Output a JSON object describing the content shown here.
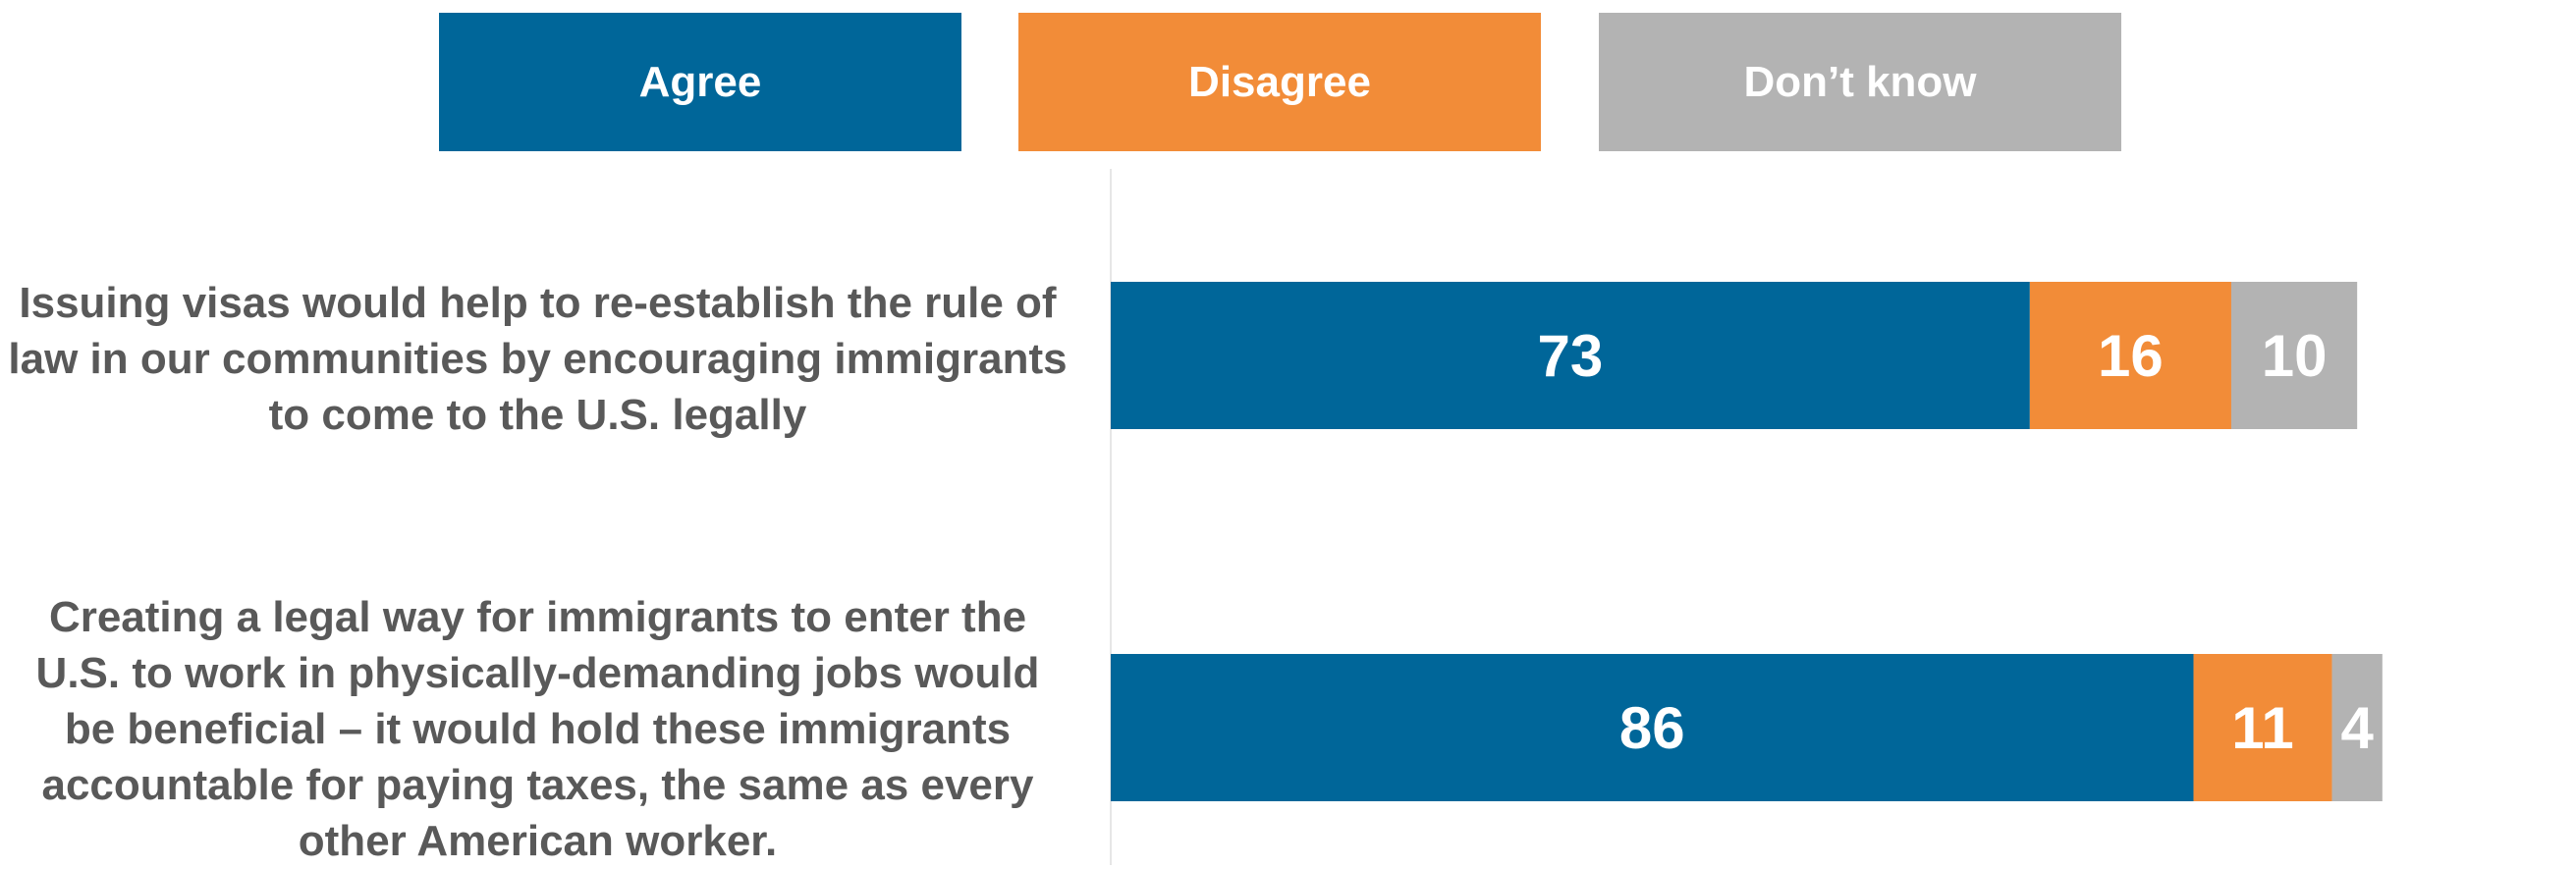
{
  "legend": {
    "agree": "Agree",
    "disagree": "Disagree",
    "dont_know": "Don’t know"
  },
  "colors": {
    "agree": "#006699",
    "disagree": "#F28C38",
    "dont_know": "#B3B3B3",
    "label_text": "#595959"
  },
  "chart_data": {
    "type": "bar",
    "orientation": "horizontal",
    "stacked": true,
    "title": "",
    "categories": [
      "Issuing visas would help to re-establish the rule of law in our communities by encouraging immigrants to come to the U.S. legally",
      "Creating a legal way for immigrants to enter the U.S. to work in physically-demanding jobs would be beneficial – it would hold these immigrants accountable for paying taxes, the same as every other American worker."
    ],
    "series": [
      {
        "name": "Agree",
        "values": [
          73,
          86
        ]
      },
      {
        "name": "Disagree",
        "values": [
          16,
          11
        ]
      },
      {
        "name": "Don’t know",
        "values": [
          10,
          4
        ]
      }
    ],
    "xlim": [
      0,
      100
    ],
    "legend_position": "top",
    "grid": false
  }
}
